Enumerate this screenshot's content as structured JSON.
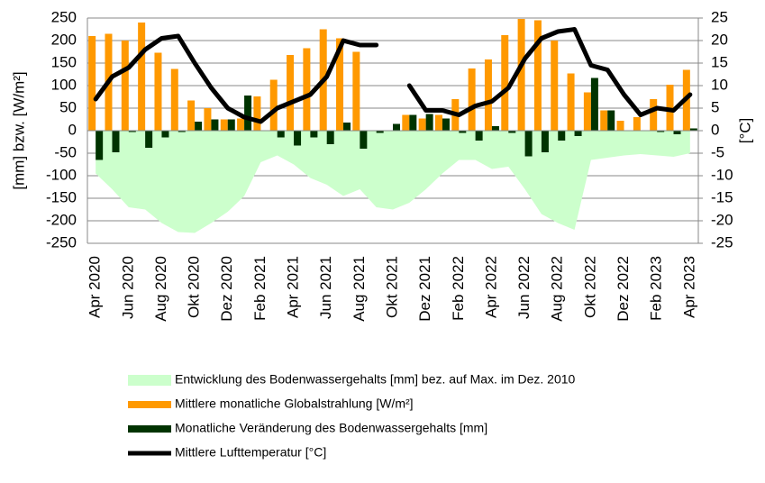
{
  "chart_data": {
    "type": "combo",
    "y_label": "[mm] bzw. [W/m²]",
    "y2_label": "[°C]",
    "categories": [
      "Apr 2020",
      null,
      "Jun 2020",
      null,
      "Aug 2020",
      null,
      "Okt 2020",
      null,
      "Dez 2020",
      null,
      "Feb 2021",
      null,
      "Apr 2021",
      null,
      "Jun 2021",
      null,
      "Aug 2021",
      null,
      "Okt 2021",
      null,
      "Dez 2021",
      null,
      "Feb 2022",
      null,
      "Apr 2022",
      null,
      "Jun 2022",
      null,
      "Aug 2022",
      null,
      "Okt 2022",
      null,
      "Dez 2022",
      null,
      "Feb 2023",
      null,
      "Apr 2023"
    ],
    "series": [
      {
        "name": "Entwicklung des Bodenwassergehalts [mm] bez. auf Max. im Dez. 2010",
        "type": "area",
        "color": "#ccffcc",
        "values": [
          -95,
          -130,
          -170,
          -175,
          -205,
          -225,
          -227,
          -205,
          -180,
          -145,
          -70,
          -55,
          -75,
          -105,
          -120,
          -145,
          -130,
          -170,
          -175,
          -160,
          -130,
          -95,
          -65,
          -65,
          -85,
          -80,
          -130,
          -185,
          -205,
          -220,
          -65,
          -60,
          -55,
          -52,
          -55,
          -58,
          -50
        ]
      },
      {
        "name": "Mittlere monatliche Globalstrahlung [W/m²]",
        "type": "bar",
        "color": "#ff9900",
        "values": [
          210,
          215,
          200,
          240,
          173,
          137,
          67,
          50,
          25,
          27,
          76,
          113,
          168,
          183,
          225,
          205,
          175,
          null,
          null,
          35,
          27,
          35,
          70,
          138,
          158,
          212,
          248,
          245,
          200,
          127,
          85,
          45,
          22,
          30,
          70,
          102,
          135
        ]
      },
      {
        "name": "Monatliche Veränderung des Bodenwassergehalts [mm]",
        "type": "bar",
        "color": "#003300",
        "values": [
          -65,
          -48,
          -3,
          -38,
          -15,
          -3,
          20,
          25,
          25,
          78,
          0,
          -15,
          -33,
          -15,
          -30,
          18,
          -40,
          -5,
          15,
          35,
          37,
          27,
          -5,
          -22,
          10,
          -5,
          -57,
          -48,
          -22,
          -12,
          117,
          45,
          0,
          0,
          -3,
          -8,
          5
        ]
      },
      {
        "name": "Mittlere Lufttemperatur [°C]",
        "type": "line",
        "axis": "y2",
        "color": "#000000",
        "values": [
          7,
          12,
          14,
          18,
          20.5,
          21,
          15,
          9.5,
          5,
          3,
          2,
          5,
          6.5,
          8,
          12,
          20,
          19,
          19,
          null,
          10,
          4.5,
          4.5,
          3.5,
          5.5,
          6.5,
          9.5,
          16,
          20.5,
          22,
          22.5,
          14.5,
          13.5,
          8,
          3.5,
          5,
          4.5,
          8
        ]
      }
    ],
    "ylim": [
      -250,
      250
    ],
    "yticks": [
      -250,
      -200,
      -150,
      -100,
      -50,
      0,
      50,
      100,
      150,
      200,
      250
    ],
    "y2lim": [
      -25,
      25
    ],
    "y2ticks": [
      -25,
      -20,
      -15,
      -10,
      -5,
      0,
      5,
      10,
      15,
      20,
      25
    ],
    "grid": true
  }
}
